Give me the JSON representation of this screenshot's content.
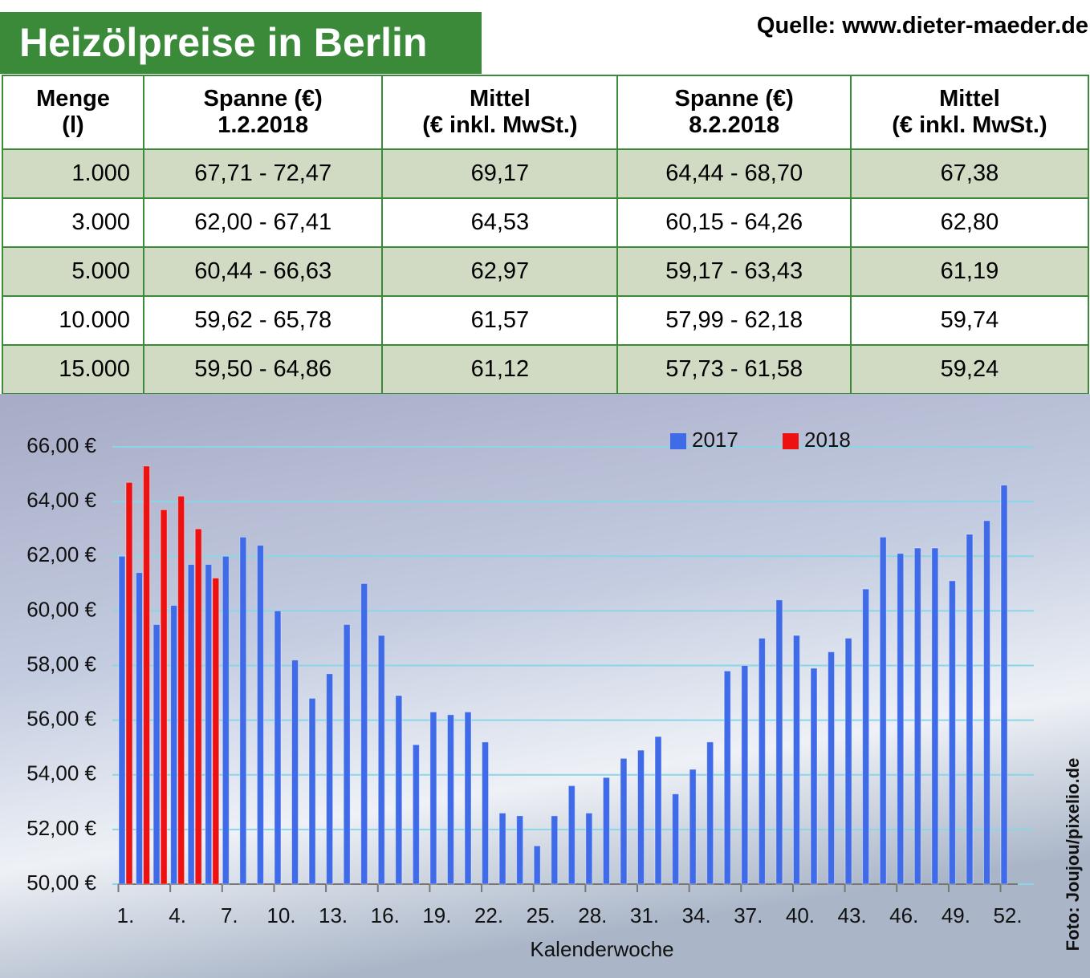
{
  "header": {
    "title": "Heizölpreise in Berlin",
    "source": "Quelle: www.dieter-maeder.de",
    "credit": "Foto: Joujou/pixelio.de"
  },
  "table": {
    "columns": [
      [
        "Menge",
        "(l)"
      ],
      [
        "Spanne (€)",
        "1.2.2018"
      ],
      [
        "Mittel",
        "(€ inkl. MwSt.)"
      ],
      [
        "Spanne (€)",
        "8.2.2018"
      ],
      [
        "Mittel",
        "(€ inkl. MwSt.)"
      ]
    ],
    "rows": [
      [
        "1.000",
        "67,71 - 72,47",
        "69,17",
        "64,44 - 68,70",
        "67,38"
      ],
      [
        "3.000",
        "62,00 - 67,41",
        "64,53",
        "60,15 - 64,26",
        "62,80"
      ],
      [
        "5.000",
        "60,44 - 66,63",
        "62,97",
        "59,17 - 63,43",
        "61,19"
      ],
      [
        "10.000",
        "59,62 - 65,78",
        "61,57",
        "57,99 - 62,18",
        "59,74"
      ],
      [
        "15.000",
        "59,50 - 64,86",
        "61,12",
        "57,73 - 61,58",
        "59,24"
      ]
    ]
  },
  "chart_data": {
    "type": "bar",
    "x_label": "Kalenderwoche",
    "categories": [
      "1.",
      null,
      null,
      "4.",
      null,
      null,
      "7.",
      null,
      null,
      "10.",
      null,
      null,
      "13.",
      null,
      null,
      "16.",
      null,
      null,
      "19.",
      null,
      null,
      "22.",
      null,
      null,
      "25.",
      null,
      null,
      "28.",
      null,
      null,
      "31.",
      null,
      null,
      "34.",
      null,
      null,
      "37.",
      null,
      null,
      "40.",
      null,
      null,
      "43.",
      null,
      null,
      "46.",
      null,
      null,
      "49.",
      null,
      null,
      "52."
    ],
    "series": [
      {
        "name": "2017",
        "color": "#3f6ae8",
        "values": [
          62.0,
          61.4,
          59.5,
          60.2,
          61.7,
          61.7,
          62.0,
          62.7,
          62.4,
          60.0,
          58.2,
          56.8,
          57.7,
          59.5,
          61.0,
          59.1,
          56.9,
          55.1,
          56.3,
          56.2,
          56.3,
          55.2,
          52.6,
          52.5,
          51.4,
          52.5,
          53.6,
          52.6,
          53.9,
          54.6,
          54.9,
          55.4,
          53.3,
          54.2,
          55.2,
          57.8,
          58.0,
          59.0,
          60.4,
          59.1,
          57.9,
          58.5,
          59.0,
          60.8,
          62.7,
          62.1,
          62.3,
          62.3,
          61.1,
          62.8,
          63.3,
          64.6
        ]
      },
      {
        "name": "2018",
        "color": "#ee1111",
        "values": [
          64.7,
          65.3,
          63.7,
          64.2,
          63.0,
          61.2,
          null,
          null,
          null,
          null,
          null,
          null,
          null,
          null,
          null,
          null,
          null,
          null,
          null,
          null,
          null,
          null,
          null,
          null,
          null,
          null,
          null,
          null,
          null,
          null,
          null,
          null,
          null,
          null,
          null,
          null,
          null,
          null,
          null,
          null,
          null,
          null,
          null,
          null,
          null,
          null,
          null,
          null,
          null,
          null,
          null,
          null
        ]
      }
    ],
    "ylim": [
      50,
      66
    ],
    "yticks": [
      {
        "value": 50,
        "label": "50,00 €"
      },
      {
        "value": 52,
        "label": "52,00 €"
      },
      {
        "value": 54,
        "label": "54,00 €"
      },
      {
        "value": 56,
        "label": "56,00 €"
      },
      {
        "value": 58,
        "label": "58,00 €"
      },
      {
        "value": 60,
        "label": "60,00 €"
      },
      {
        "value": 62,
        "label": "62,00 €"
      },
      {
        "value": 64,
        "label": "64,00 €"
      },
      {
        "value": 66,
        "label": "66,00 €"
      }
    ],
    "grid": true
  }
}
